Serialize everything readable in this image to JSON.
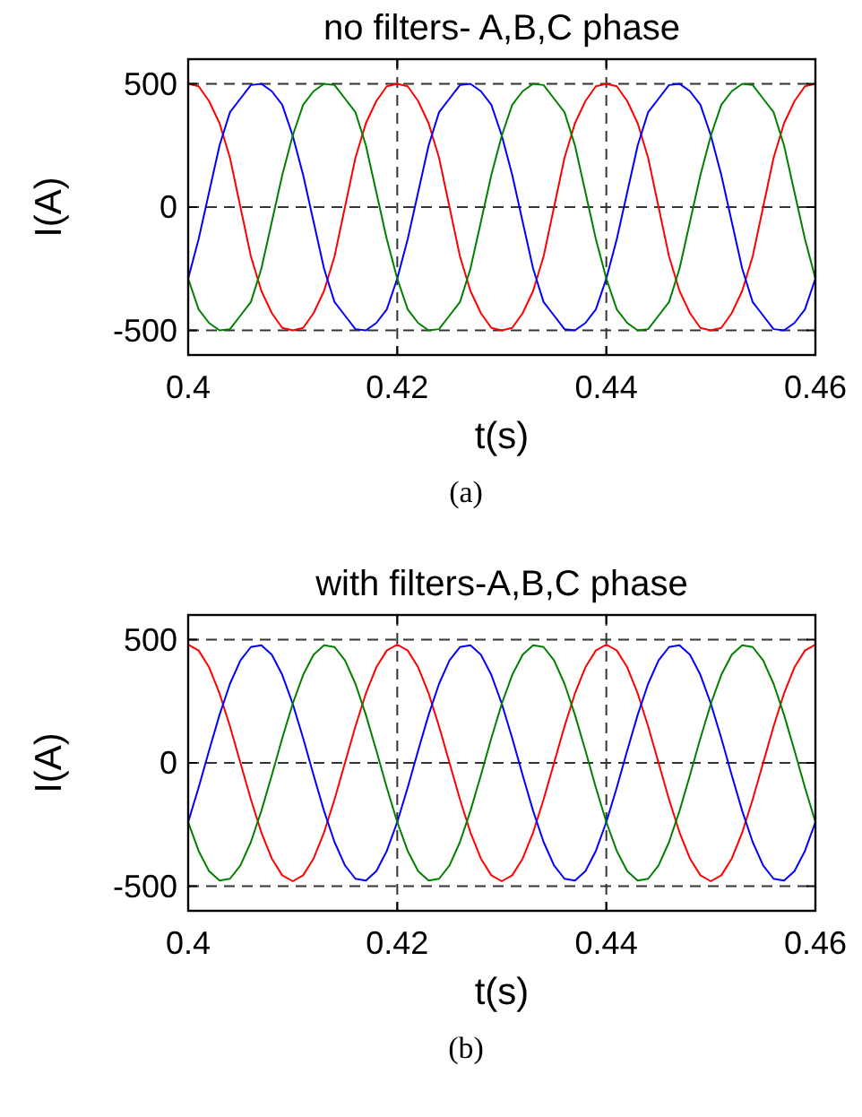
{
  "chart_data": [
    {
      "type": "line",
      "title": "no filters- A,B,C phase",
      "xlabel": "t(s)",
      "ylabel": "I(A)",
      "annotations": [
        "(a)"
      ],
      "xlim": [
        0.4,
        0.46
      ],
      "xticks": [
        0.4,
        0.42,
        0.44,
        0.46
      ],
      "ylim": [
        -600,
        600
      ],
      "yticks": [
        -500,
        0,
        500
      ],
      "grid": true,
      "line_style": "solid",
      "x": [
        0.4,
        0.401,
        0.402,
        0.403,
        0.404,
        0.405,
        0.406,
        0.407,
        0.408,
        0.409,
        0.41,
        0.411,
        0.412,
        0.413,
        0.414,
        0.415,
        0.416,
        0.417,
        0.418,
        0.419,
        0.42,
        0.421,
        0.422,
        0.423,
        0.424,
        0.425,
        0.426,
        0.427,
        0.428,
        0.429,
        0.43,
        0.431,
        0.432,
        0.433,
        0.434,
        0.435,
        0.436,
        0.437,
        0.438,
        0.439,
        0.44,
        0.441,
        0.442,
        0.443,
        0.444,
        0.445,
        0.446,
        0.447,
        0.448,
        0.449,
        0.45,
        0.451,
        0.452,
        0.453,
        0.454,
        0.455,
        0.456,
        0.457,
        0.458,
        0.459,
        0.46
      ],
      "series": [
        {
          "color": "#ff0000",
          "values": [
            500,
            490,
            430,
            340,
            200,
            0,
            -200,
            -340,
            -430,
            -490,
            -500,
            -490,
            -430,
            -340,
            -200,
            0,
            200,
            340,
            430,
            490,
            500,
            490,
            430,
            340,
            200,
            0,
            -200,
            -340,
            -430,
            -490,
            -500,
            -490,
            -430,
            -340,
            -200,
            0,
            200,
            340,
            430,
            490,
            500,
            490,
            430,
            340,
            200,
            0,
            -200,
            -340,
            -430,
            -490,
            -500,
            -490,
            -430,
            -340,
            -200,
            0,
            200,
            340,
            430,
            490,
            500
          ]
        },
        {
          "color": "#0000ff",
          "values": [
            -290,
            -130,
            60,
            250,
            385,
            440,
            495,
            500,
            470,
            415,
            290,
            130,
            -60,
            -250,
            -385,
            -440,
            -495,
            -500,
            -470,
            -415,
            -290,
            -130,
            60,
            250,
            385,
            440,
            495,
            500,
            470,
            415,
            290,
            130,
            -60,
            -250,
            -385,
            -440,
            -495,
            -500,
            -470,
            -415,
            -290,
            -130,
            60,
            250,
            385,
            440,
            495,
            500,
            470,
            415,
            290,
            130,
            -60,
            -250,
            -385,
            -440,
            -495,
            -500,
            -470,
            -415,
            -290
          ]
        },
        {
          "color": "#008000",
          "values": [
            -290,
            -415,
            -470,
            -500,
            -495,
            -440,
            -385,
            -250,
            -60,
            130,
            290,
            415,
            470,
            500,
            495,
            440,
            385,
            250,
            60,
            -130,
            -290,
            -415,
            -470,
            -500,
            -495,
            -440,
            -385,
            -250,
            -60,
            130,
            290,
            415,
            470,
            500,
            495,
            440,
            385,
            250,
            60,
            -130,
            -290,
            -415,
            -470,
            -500,
            -495,
            -440,
            -385,
            -250,
            -60,
            130,
            290,
            415,
            470,
            500,
            495,
            440,
            385,
            250,
            60,
            -130,
            -290
          ]
        }
      ]
    },
    {
      "type": "line",
      "title": "with filters-A,B,C phase",
      "xlabel": "t(s)",
      "ylabel": "I(A)",
      "annotations": [
        "(b)"
      ],
      "xlim": [
        0.4,
        0.46
      ],
      "xticks": [
        0.4,
        0.42,
        0.44,
        0.46
      ],
      "ylim": [
        -600,
        600
      ],
      "yticks": [
        -500,
        0,
        500
      ],
      "grid": true,
      "line_style": "solid",
      "x": [
        0.4,
        0.401,
        0.402,
        0.403,
        0.404,
        0.405,
        0.406,
        0.407,
        0.408,
        0.409,
        0.41,
        0.411,
        0.412,
        0.413,
        0.414,
        0.415,
        0.416,
        0.417,
        0.418,
        0.419,
        0.42,
        0.421,
        0.422,
        0.423,
        0.424,
        0.425,
        0.426,
        0.427,
        0.428,
        0.429,
        0.43,
        0.431,
        0.432,
        0.433,
        0.434,
        0.435,
        0.436,
        0.437,
        0.438,
        0.439,
        0.44,
        0.441,
        0.442,
        0.443,
        0.444,
        0.445,
        0.446,
        0.447,
        0.448,
        0.449,
        0.45,
        0.451,
        0.452,
        0.453,
        0.454,
        0.455,
        0.456,
        0.457,
        0.458,
        0.459,
        0.46
      ],
      "series": [
        {
          "color": "#ff0000",
          "values": [
            480,
            456,
            388,
            282,
            148,
            0,
            -148,
            -282,
            -388,
            -456,
            -480,
            -456,
            -388,
            -282,
            -148,
            0,
            148,
            282,
            388,
            456,
            480,
            456,
            388,
            282,
            148,
            0,
            -148,
            -282,
            -388,
            -456,
            -480,
            -456,
            -388,
            -282,
            -148,
            0,
            148,
            282,
            388,
            456,
            480,
            456,
            388,
            282,
            148,
            0,
            -148,
            -282,
            -388,
            -456,
            -480,
            -456,
            -388,
            -282,
            -148,
            0,
            148,
            282,
            388,
            456,
            480
          ]
        },
        {
          "color": "#0000ff",
          "values": [
            -240,
            -100,
            50,
            195,
            321,
            416,
            470,
            477,
            439,
            357,
            240,
            100,
            -50,
            -195,
            -321,
            -416,
            -470,
            -477,
            -439,
            -357,
            -240,
            -100,
            50,
            195,
            321,
            416,
            470,
            477,
            439,
            357,
            240,
            100,
            -50,
            -195,
            -321,
            -416,
            -470,
            -477,
            -439,
            -357,
            -240,
            -100,
            50,
            195,
            321,
            416,
            470,
            477,
            439,
            357,
            240,
            100,
            -50,
            -195,
            -321,
            -416,
            -470,
            -477,
            -439,
            -357,
            -240
          ]
        },
        {
          "color": "#008000",
          "values": [
            -240,
            -357,
            -439,
            -477,
            -470,
            -416,
            -321,
            -195,
            -50,
            100,
            240,
            357,
            439,
            477,
            470,
            416,
            321,
            195,
            50,
            -100,
            -240,
            -357,
            -439,
            -477,
            -470,
            -416,
            -321,
            -195,
            -50,
            100,
            240,
            357,
            439,
            477,
            470,
            416,
            321,
            195,
            50,
            -100,
            -240,
            -357,
            -439,
            -477,
            -470,
            -416,
            -321,
            -195,
            -50,
            100,
            240,
            357,
            439,
            477,
            470,
            416,
            321,
            195,
            50,
            -100,
            -240
          ]
        }
      ]
    }
  ]
}
